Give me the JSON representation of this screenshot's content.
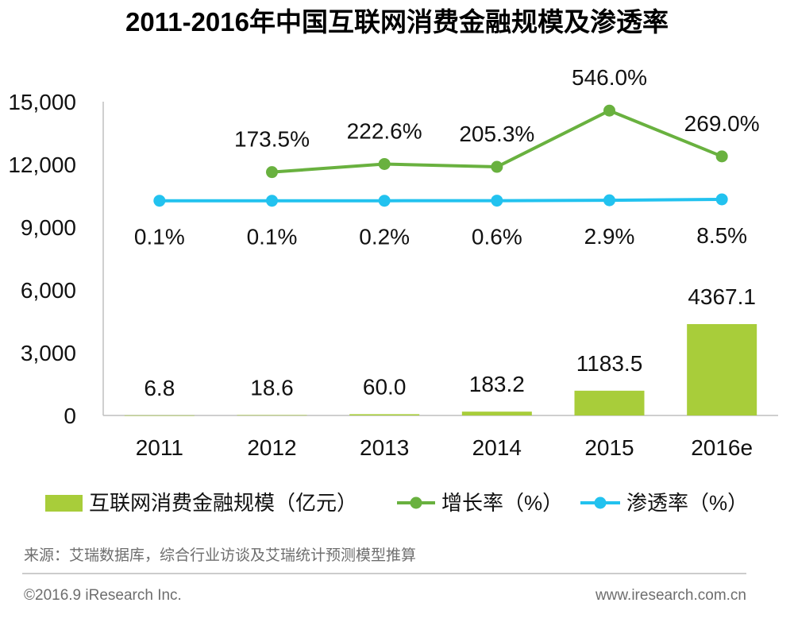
{
  "chart_data": {
    "type": "bar",
    "title": "2011-2016年中国互联网消费金融规模及渗透率",
    "categories": [
      "2011",
      "2012",
      "2013",
      "2014",
      "2015",
      "2016e"
    ],
    "ylim": [
      0,
      15000
    ],
    "yticks": [
      0,
      3000,
      6000,
      9000,
      12000,
      15000
    ],
    "ytick_labels": [
      "0",
      "3,000",
      "6,000",
      "9,000",
      "12,000",
      "15,000"
    ],
    "y2lim": [
      -1300,
      600
    ],
    "grid": false,
    "legend_position": "bottom",
    "series": [
      {
        "name": "互联网消费金融规模（亿元）",
        "type": "bar",
        "axis": "primary",
        "color": "#a8cd3a",
        "values": [
          6.8,
          18.6,
          60.0,
          183.2,
          1183.5,
          4367.1
        ],
        "labels": [
          "6.8",
          "18.6",
          "60.0",
          "183.2",
          "1183.5",
          "4367.1"
        ]
      },
      {
        "name": "增长率（%）",
        "type": "line",
        "axis": "secondary",
        "color": "#69b13f",
        "values": [
          null,
          173.5,
          222.6,
          205.3,
          546.0,
          269.0
        ],
        "labels": [
          null,
          "173.5%",
          "222.6%",
          "205.3%",
          "546.0%",
          "269.0%"
        ]
      },
      {
        "name": "渗透率（%）",
        "type": "line",
        "axis": "secondary",
        "color": "#22c2ef",
        "values": [
          0.1,
          0.1,
          0.2,
          0.6,
          2.9,
          8.5
        ],
        "labels": [
          "0.1%",
          "0.1%",
          "0.2%",
          "0.6%",
          "2.9%",
          "8.5%"
        ]
      }
    ]
  },
  "footer": {
    "source": "来源：艾瑞数据库，综合行业访谈及艾瑞统计预测模型推算",
    "copyright": "©2016.9 iResearch Inc.",
    "website": "www.iresearch.com.cn"
  }
}
